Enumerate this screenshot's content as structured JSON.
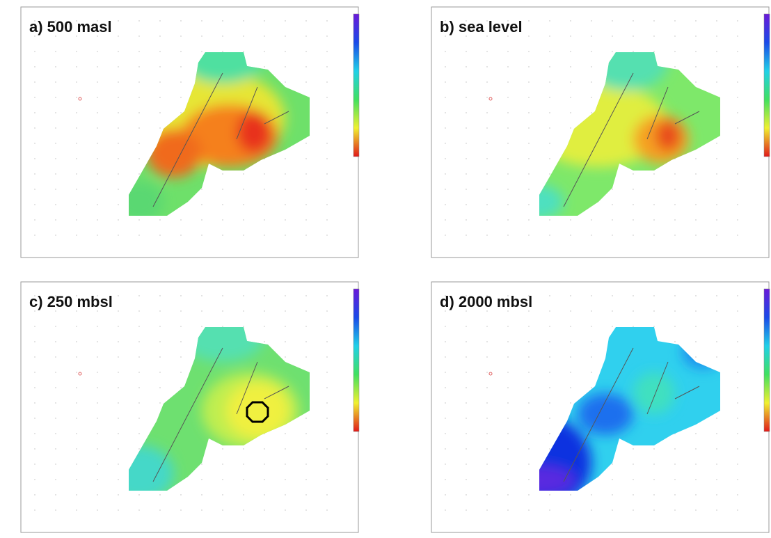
{
  "panels": [
    {
      "title": "a)  500 masl"
    },
    {
      "title": "b)  sea level"
    },
    {
      "title": "c)  250 mbsl"
    },
    {
      "title": "d)  2000 mbsl"
    }
  ]
}
